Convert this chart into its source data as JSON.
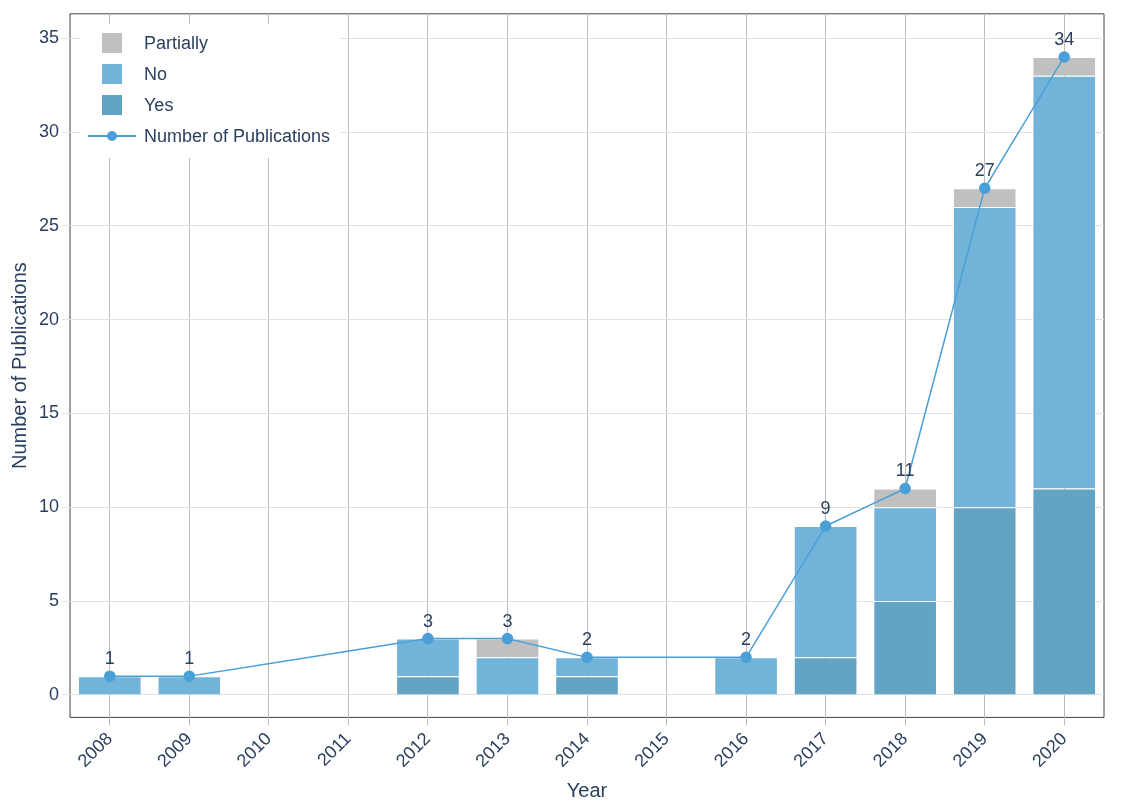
{
  "chart_data": {
    "type": "bar",
    "xlabel": "Year",
    "ylabel": "Number of Publications",
    "categories": [
      "2008",
      "2009",
      "2010",
      "2011",
      "2012",
      "2013",
      "2014",
      "2015",
      "2016",
      "2017",
      "2018",
      "2019",
      "2020"
    ],
    "stacked": true,
    "ylim": [
      -1.2,
      36.3
    ],
    "yticks": [
      0,
      5,
      10,
      15,
      20,
      25,
      30,
      35
    ],
    "grid": true,
    "legend": "top left",
    "series": [
      {
        "name": "Yes",
        "color": "#63a3c4",
        "values": [
          0,
          0,
          0,
          0,
          1,
          0,
          1,
          0,
          0,
          2,
          5,
          10,
          11
        ]
      },
      {
        "name": "No",
        "color": "#72b4d9",
        "values": [
          1,
          1,
          0,
          0,
          2,
          2,
          1,
          0,
          2,
          7,
          5,
          16,
          22
        ]
      },
      {
        "name": "Partially",
        "color": "#c0c0c0",
        "values": [
          0,
          0,
          0,
          0,
          0,
          1,
          0,
          0,
          0,
          0,
          1,
          1,
          1
        ]
      },
      {
        "name": "Number of Publications",
        "type": "line",
        "color": "#4a9fd8",
        "marker": "circle",
        "values": [
          1,
          1,
          null,
          null,
          3,
          3,
          2,
          null,
          2,
          9,
          11,
          27,
          34
        ],
        "value_labels": [
          "1",
          "1",
          null,
          null,
          "3",
          "3",
          "2",
          null,
          "2",
          "9",
          "11",
          "27",
          "34"
        ]
      }
    ]
  }
}
